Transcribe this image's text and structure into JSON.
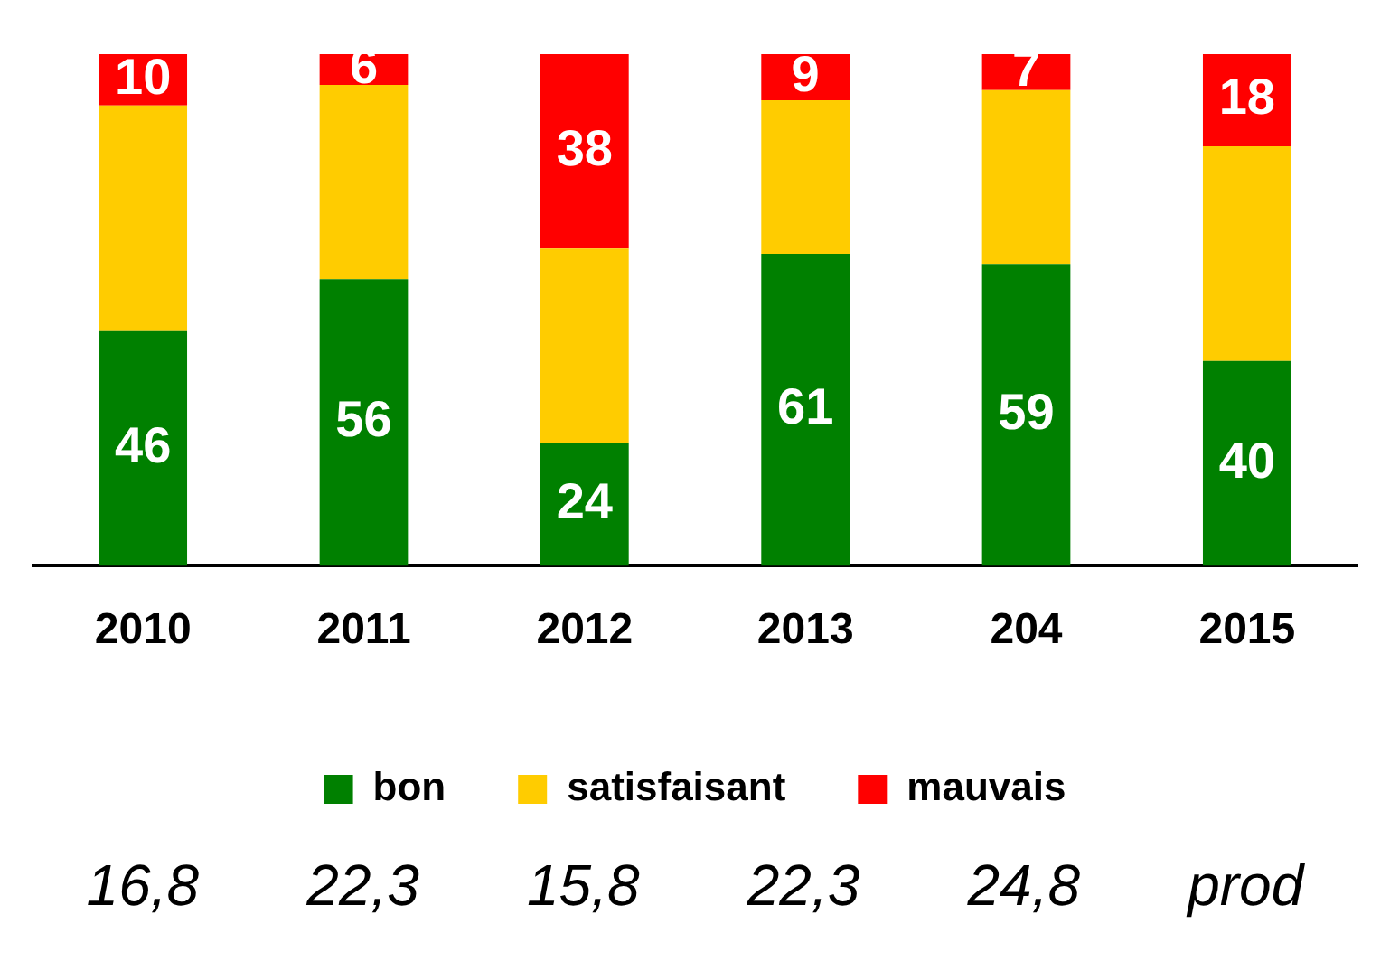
{
  "chart_data": {
    "type": "bar",
    "stacked": true,
    "categories": [
      "2010",
      "2011",
      "2012",
      "2013",
      "204",
      "2015"
    ],
    "series": [
      {
        "name": "bon",
        "color": "#008000",
        "values": [
          46,
          56,
          24,
          61,
          59,
          40
        ],
        "value_labels": [
          "46",
          "56",
          "24",
          "61",
          "59",
          "40"
        ]
      },
      {
        "name": "satisfaisant",
        "color": "#ffcc00",
        "values": [
          44,
          38,
          38,
          30,
          34,
          42
        ],
        "value_labels": [
          null,
          null,
          null,
          null,
          null,
          null
        ]
      },
      {
        "name": "mauvais",
        "color": "#ff0000",
        "values": [
          10,
          6,
          38,
          9,
          7,
          18
        ],
        "value_labels": [
          "10",
          "6",
          "38",
          "9",
          "7",
          "18"
        ]
      }
    ],
    "legend": "bottom",
    "grid": false,
    "annotations": [
      "16,8",
      "22,3",
      "15,8",
      "22,3",
      "24,8",
      "prod"
    ]
  }
}
